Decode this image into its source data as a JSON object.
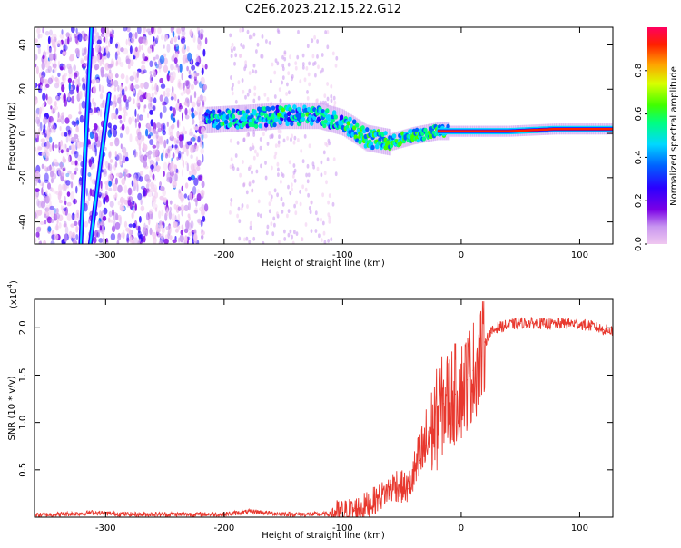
{
  "figure": {
    "title": "C2E6.2023.212.15.22.G12"
  },
  "chart_data": [
    {
      "type": "heatmap",
      "title": "C2E6.2023.212.15.22.G12",
      "xlabel": "Height of straight line (km)",
      "ylabel": "Frequency (Hz)",
      "xlim": [
        -360,
        128
      ],
      "ylim": [
        -50,
        48
      ],
      "x_ticks": [
        -300,
        -200,
        -100,
        0,
        100
      ],
      "x_tick_labels": [
        "-300",
        "-200",
        "-100",
        "0",
        "100"
      ],
      "y_ticks": [
        -40,
        -20,
        0,
        20,
        40
      ],
      "y_tick_labels": [
        "-40",
        "-20",
        "0",
        "20",
        "40"
      ],
      "colorbar": {
        "label": "Normalized spectral amplitude",
        "range": [
          0.0,
          1.0
        ],
        "ticks": [
          0.0,
          0.2,
          0.4,
          0.6,
          0.8
        ],
        "tick_labels": [
          "0.0",
          "0.2",
          "0.4",
          "0.6",
          "0.8"
        ],
        "colormap": [
          "#f0c8f0",
          "#c896f0",
          "#7a00e6",
          "#2a00ff",
          "#0060ff",
          "#00d8ff",
          "#00ff80",
          "#40ff00",
          "#d8ff00",
          "#ffa000",
          "#ff2000",
          "#ff0060"
        ]
      },
      "features": {
        "noise_region_x": [
          -360,
          -215
        ],
        "carrier_track": [
          {
            "x": -215,
            "y": 6
          },
          {
            "x": -180,
            "y": 7
          },
          {
            "x": -150,
            "y": 8
          },
          {
            "x": -120,
            "y": 8
          },
          {
            "x": -100,
            "y": 5
          },
          {
            "x": -80,
            "y": -2
          },
          {
            "x": -60,
            "y": -4
          },
          {
            "x": -40,
            "y": -1
          },
          {
            "x": -20,
            "y": 1
          },
          {
            "x": 0,
            "y": 1
          },
          {
            "x": 40,
            "y": 1
          },
          {
            "x": 80,
            "y": 2
          },
          {
            "x": 128,
            "y": 2
          }
        ],
        "diagonal_streaks": [
          {
            "x0": -321,
            "y0": -50,
            "x1": -312,
            "y1": 48
          },
          {
            "x0": -313,
            "y0": -50,
            "x1": -297,
            "y1": 18
          }
        ]
      }
    },
    {
      "type": "line",
      "xlabel": "Height of straight line (km)",
      "ylabel": "SNR (10 * v/v)",
      "y_scale_label": "(x10",
      "y_scale_exponent": "4",
      "xlim": [
        -360,
        128
      ],
      "ylim": [
        0,
        2.3
      ],
      "x_ticks": [
        -300,
        -200,
        -100,
        0,
        100
      ],
      "x_tick_labels": [
        "-300",
        "-200",
        "-100",
        "0",
        "100"
      ],
      "y_ticks": [
        0.5,
        1.0,
        1.5,
        2.0
      ],
      "y_tick_labels": [
        "0.5",
        "1.0",
        "1.5",
        "2.0"
      ],
      "series": [
        {
          "color": "#e8382e",
          "x": [
            -360,
            -340,
            -320,
            -310,
            -300,
            -280,
            -260,
            -240,
            -220,
            -200,
            -185,
            -175,
            -160,
            -140,
            -120,
            -100,
            -90,
            -80,
            -70,
            -60,
            -55,
            -50,
            -45,
            -40,
            -35,
            -30,
            -25,
            -20,
            -15,
            -10,
            -5,
            0,
            5,
            10,
            15,
            20,
            25,
            30,
            40,
            50,
            60,
            70,
            80,
            90,
            100,
            110,
            120,
            128
          ],
          "y": [
            0.02,
            0.03,
            0.04,
            0.05,
            0.04,
            0.03,
            0.03,
            0.03,
            0.03,
            0.03,
            0.05,
            0.06,
            0.04,
            0.03,
            0.03,
            0.04,
            0.07,
            0.12,
            0.2,
            0.3,
            0.35,
            0.32,
            0.3,
            0.45,
            0.6,
            0.75,
            0.9,
            1.05,
            1.2,
            1.25,
            1.3,
            1.35,
            1.45,
            1.55,
            1.65,
            1.85,
            1.95,
            2.0,
            2.03,
            2.05,
            2.05,
            2.04,
            2.04,
            2.05,
            2.04,
            2.02,
            1.98,
            1.97
          ]
        }
      ]
    }
  ]
}
